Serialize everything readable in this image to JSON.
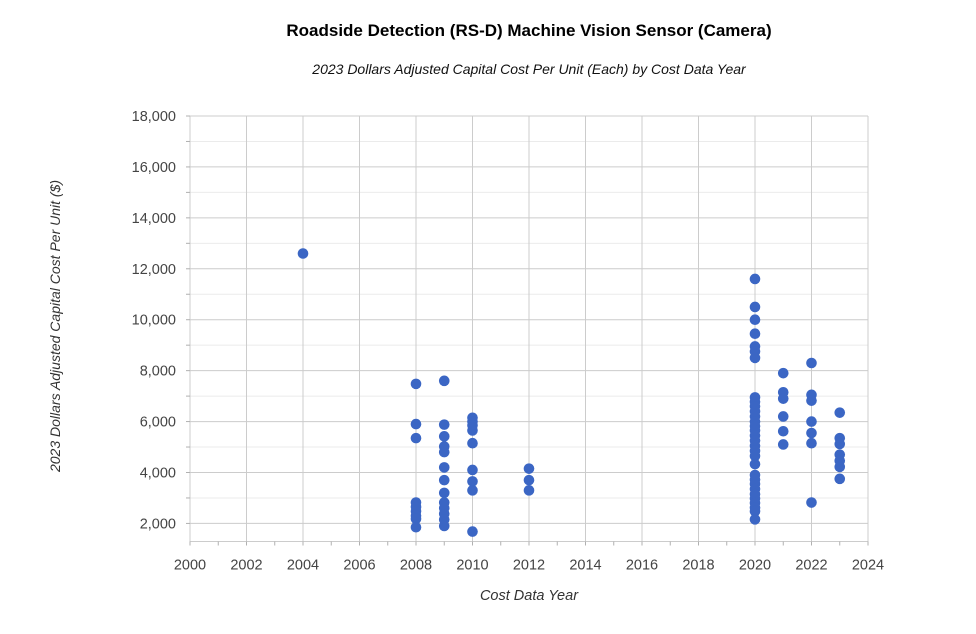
{
  "chart_data": {
    "type": "scatter",
    "title": "Roadside Detection (RS-D) Machine Vision Sensor (Camera)",
    "subtitle": "2023 Dollars Adjusted Capital Cost Per Unit (Each) by Cost Data Year",
    "xlabel": "Cost Data Year",
    "ylabel": "2023 Dollars Adjusted Capital Cost Per Unit ($)",
    "xlim": [
      2000,
      2024
    ],
    "ylim": [
      1290,
      18000
    ],
    "x_tick_step": 2,
    "x_minor_tick_step": 1,
    "y_grid_min": 2000,
    "y_grid_max": 18000,
    "y_tick_step": 2000,
    "y_minor_step": 1000,
    "x_ticks": [
      2000,
      2002,
      2004,
      2006,
      2008,
      2010,
      2012,
      2014,
      2016,
      2018,
      2020,
      2022,
      2024
    ],
    "x_tick_labels": [
      "2000",
      "2002",
      "2004",
      "2006",
      "2008",
      "2010",
      "2012",
      "2014",
      "2016",
      "2018",
      "2020",
      "2022",
      "2024"
    ],
    "y_ticks": [
      2000,
      4000,
      6000,
      8000,
      10000,
      12000,
      14000,
      16000,
      18000
    ],
    "y_tick_labels": [
      "2,000",
      "4,000",
      "6,000",
      "8,000",
      "10,000",
      "12,000",
      "14,000",
      "16,000",
      "18,000"
    ],
    "grid": true,
    "legend": "none",
    "point_color": "#3b66c4",
    "point_radius": 5.3,
    "major_grid_color": "#cccccc",
    "minor_grid_color": "#ebebeb",
    "tick_color": "#b0b0b0",
    "points_by_year": {
      "2004": [
        12600
      ],
      "2008": [
        7480,
        5900,
        5350,
        2820,
        2650,
        2480,
        2300,
        2180,
        1850
      ],
      "2009": [
        7600,
        5880,
        5420,
        5020,
        4800,
        4200,
        3700,
        3200,
        2820,
        2600,
        2380,
        2150,
        1900
      ],
      "2010": [
        6150,
        6000,
        5850,
        5650,
        5150,
        4100,
        3650,
        3300,
        1680
      ],
      "2012": [
        4150,
        3700,
        3300
      ],
      "2020": [
        11600,
        10500,
        10000,
        9450,
        8950,
        8750,
        8500,
        6950,
        6780,
        6600,
        6400,
        6200,
        6000,
        5820,
        5650,
        5450,
        5250,
        5050,
        4850,
        4650,
        4330,
        3900,
        3720,
        3550,
        3350,
        3150,
        2980,
        2800,
        2620,
        2480,
        2160
      ],
      "2021": [
        7900,
        7150,
        6900,
        6200,
        5620,
        5100
      ],
      "2022": [
        8300,
        7050,
        6820,
        6000,
        5550,
        5150,
        2820
      ],
      "2023": [
        6350,
        5350,
        5120,
        4700,
        4460,
        4220,
        3750
      ]
    }
  }
}
